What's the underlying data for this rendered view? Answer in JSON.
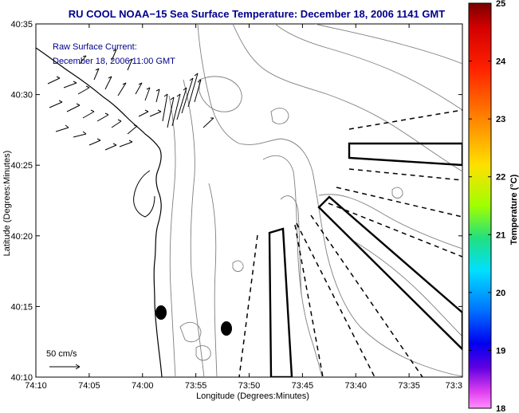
{
  "title": "RU COOL  NOAA−15  Sea Surface Temperature:  December 18, 2006 1141 GMT",
  "overlay": {
    "line1": "Raw Surface Current:",
    "line2": "December 18, 2006 11:00 GMT"
  },
  "scale": {
    "label": "50 cm/s"
  },
  "axes": {
    "xlabel": "Longitude (Degrees:Minutes)",
    "ylabel": "Latitude (Degrees:Minutes)",
    "xticks": [
      "74:10",
      "74:05",
      "74:00",
      "73:55",
      "73:50",
      "73:45",
      "73:40",
      "73:35",
      "73:3"
    ],
    "yticks": [
      "40:35",
      "40:30",
      "40:25",
      "40:20",
      "40:15",
      "40:10"
    ]
  },
  "colorbar": {
    "label": "Temperature (°C)",
    "ticks": [
      "25",
      "24",
      "23",
      "22",
      "21",
      "20",
      "19",
      "18"
    ],
    "range": [
      18,
      25
    ]
  },
  "colors": {
    "title": "#00008b",
    "coast": "#000000",
    "bathymetry": "#7f7f7f"
  }
}
